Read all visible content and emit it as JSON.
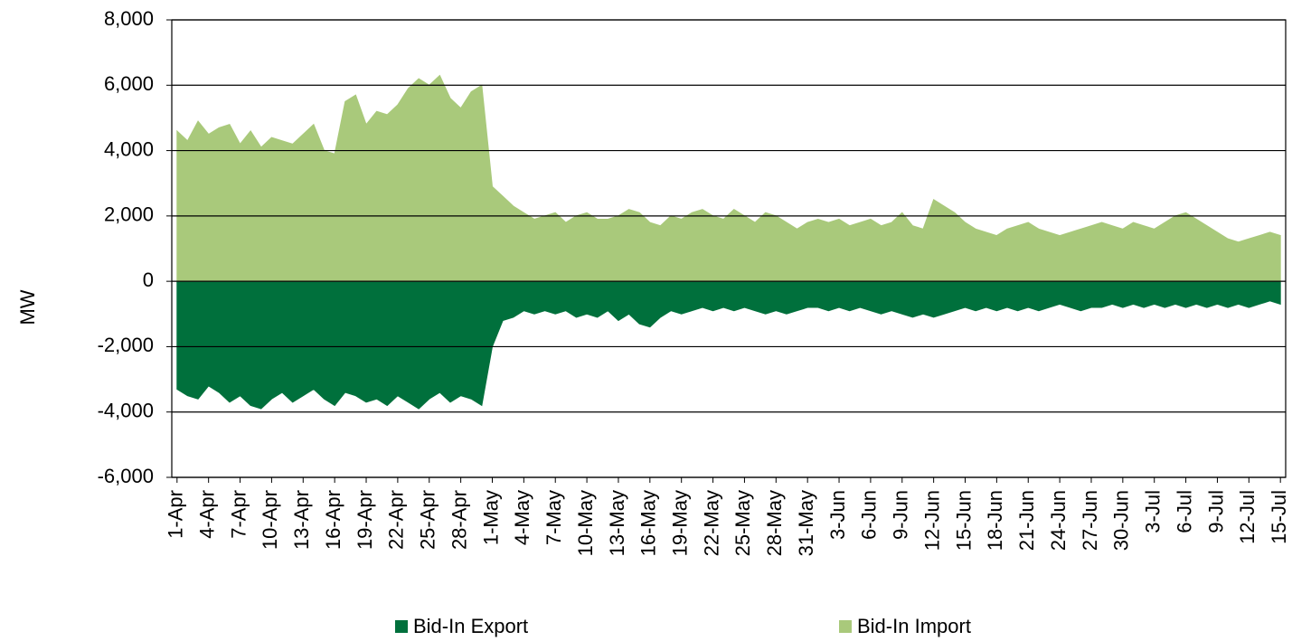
{
  "chart_data": {
    "type": "area",
    "y_label": "MW",
    "categories": [
      "1-Apr",
      null,
      null,
      "4-Apr",
      null,
      null,
      "7-Apr",
      null,
      null,
      "10-Apr",
      null,
      null,
      "13-Apr",
      null,
      null,
      "16-Apr",
      null,
      null,
      "19-Apr",
      null,
      null,
      "22-Apr",
      null,
      null,
      "25-Apr",
      null,
      null,
      "28-Apr",
      null,
      null,
      "1-May",
      null,
      null,
      "4-May",
      null,
      null,
      "7-May",
      null,
      null,
      "10-May",
      null,
      null,
      "13-May",
      null,
      null,
      "16-May",
      null,
      null,
      "19-May",
      null,
      null,
      "22-May",
      null,
      null,
      "25-May",
      null,
      null,
      "28-May",
      null,
      null,
      "31-May",
      null,
      null,
      "3-Jun",
      null,
      null,
      "6-Jun",
      null,
      null,
      "9-Jun",
      null,
      null,
      "12-Jun",
      null,
      null,
      "15-Jun",
      null,
      null,
      "18-Jun",
      null,
      null,
      "21-Jun",
      null,
      null,
      "24-Jun",
      null,
      null,
      "27-Jun",
      null,
      null,
      "30-Jun",
      null,
      null,
      "3-Jul",
      null,
      null,
      "6-Jul",
      null,
      null,
      "9-Jul",
      null,
      null,
      "12-Jul",
      null,
      null,
      "15-Jul"
    ],
    "series": [
      {
        "name": "Bid-In Export",
        "color": "#00703c",
        "values": [
          -3300,
          -3500,
          -3600,
          -3200,
          -3400,
          -3700,
          -3500,
          -3800,
          -3900,
          -3600,
          -3400,
          -3700,
          -3500,
          -3300,
          -3600,
          -3800,
          -3400,
          -3500,
          -3700,
          -3600,
          -3800,
          -3500,
          -3700,
          -3900,
          -3600,
          -3400,
          -3700,
          -3500,
          -3600,
          -3800,
          -2000,
          -1200,
          -1100,
          -900,
          -1000,
          -900,
          -1000,
          -900,
          -1100,
          -1000,
          -1100,
          -900,
          -1200,
          -1000,
          -1300,
          -1400,
          -1100,
          -900,
          -1000,
          -900,
          -800,
          -900,
          -800,
          -900,
          -800,
          -900,
          -1000,
          -900,
          -1000,
          -900,
          -800,
          -800,
          -900,
          -800,
          -900,
          -800,
          -900,
          -1000,
          -900,
          -1000,
          -1100,
          -1000,
          -1100,
          -1000,
          -900,
          -800,
          -900,
          -800,
          -900,
          -800,
          -900,
          -800,
          -900,
          -800,
          -700,
          -800,
          -900,
          -800,
          -800,
          -700,
          -800,
          -700,
          -800,
          -700,
          -800,
          -700,
          -800,
          -700,
          -800,
          -700,
          -800,
          -700,
          -800,
          -700,
          -600,
          -700
        ]
      },
      {
        "name": "Bid-In Import",
        "color": "#a9c97b",
        "values": [
          4600,
          4300,
          4900,
          4500,
          4700,
          4800,
          4200,
          4600,
          4100,
          4400,
          4300,
          4200,
          4500,
          4800,
          4000,
          3900,
          5500,
          5700,
          4800,
          5200,
          5100,
          5400,
          5900,
          6200,
          6000,
          6300,
          5600,
          5300,
          5800,
          6000,
          2900,
          2600,
          2300,
          2100,
          1900,
          2000,
          2100,
          1800,
          2000,
          2100,
          1900,
          1900,
          2000,
          2200,
          2100,
          1800,
          1700,
          2000,
          1900,
          2100,
          2200,
          2000,
          1900,
          2200,
          2000,
          1800,
          2100,
          2000,
          1800,
          1600,
          1800,
          1900,
          1800,
          1900,
          1700,
          1800,
          1900,
          1700,
          1800,
          2100,
          1700,
          1600,
          2500,
          2300,
          2100,
          1800,
          1600,
          1500,
          1400,
          1600,
          1700,
          1800,
          1600,
          1500,
          1400,
          1500,
          1600,
          1700,
          1800,
          1700,
          1600,
          1800,
          1700,
          1600,
          1800,
          2000,
          2100,
          1900,
          1700,
          1500,
          1300,
          1200,
          1300,
          1400,
          1500,
          1400
        ]
      }
    ],
    "ylim": [
      -6000,
      8000
    ],
    "yticks": [
      {
        "value": -6000,
        "label": "-6,000"
      },
      {
        "value": -4000,
        "label": "-4,000"
      },
      {
        "value": -2000,
        "label": "-2,000"
      },
      0,
      {
        "value": 2000,
        "label": "2,000"
      },
      {
        "value": 4000,
        "label": "4,000"
      },
      {
        "value": 6000,
        "label": "6,000"
      },
      {
        "value": 8000,
        "label": "8,000"
      }
    ],
    "grid": true
  }
}
